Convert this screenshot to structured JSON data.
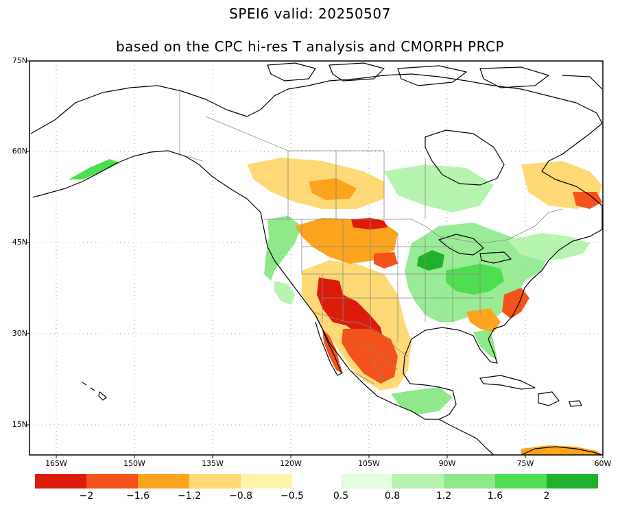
{
  "title_line1": "SPEI6  valid: 20250507",
  "title_line2": "based on the CPC hi-res T analysis and CMORPH PRCP",
  "lat_labels": [
    "75N",
    "60N",
    "45N",
    "30N",
    "15N"
  ],
  "lon_labels": [
    "165W",
    "150W",
    "135W",
    "120W",
    "105W",
    "90W",
    "75W",
    "60W"
  ],
  "colorbar": {
    "dry_colors": [
      "#dd1b0b",
      "#f4521b",
      "#fda41e",
      "#fed976",
      "#fff5a8"
    ],
    "wet_colors": [
      "#e4fde0",
      "#b7f4b0",
      "#8fe98a",
      "#4fdd52",
      "#1eb12c"
    ],
    "dry_labels": [
      "−2",
      "−1.6",
      "−1.2",
      "−0.8",
      "−0.5"
    ],
    "wet_labels": [
      "0.5",
      "0.8",
      "1.2",
      "1.6",
      "2"
    ]
  }
}
